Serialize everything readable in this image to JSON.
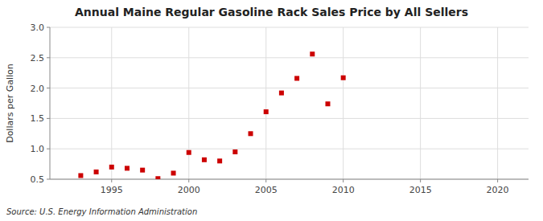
{
  "chart_data": {
    "type": "scatter",
    "title": "Annual Maine Regular Gasoline Rack Sales Price by All Sellers",
    "y_label": "Dollars per Gallon",
    "annotations": [
      "Source: U.S. Energy Information Administration"
    ],
    "x": [
      1993,
      1994,
      1995,
      1996,
      1997,
      1998,
      1999,
      2000,
      2001,
      2002,
      2003,
      2004,
      2005,
      2006,
      2007,
      2008,
      2009,
      2010
    ],
    "values": [
      0.56,
      0.62,
      0.7,
      0.68,
      0.65,
      0.51,
      0.6,
      0.94,
      0.82,
      0.8,
      0.95,
      1.25,
      1.61,
      1.92,
      2.16,
      2.56,
      1.74,
      2.17
    ],
    "color": "#cc0000",
    "marker": "square",
    "xlim": [
      1991,
      2022
    ],
    "ylim": [
      0.5,
      3.0
    ],
    "xticks": [
      1995,
      2000,
      2005,
      2010,
      2015,
      2020
    ],
    "yticks": [
      0.5,
      {
        "value": 1.0,
        "label": "1.0"
      },
      1.5,
      {
        "value": 2.0,
        "label": "2.0"
      },
      2.5,
      {
        "value": 3.0,
        "label": "3.0"
      }
    ],
    "grid": true
  }
}
